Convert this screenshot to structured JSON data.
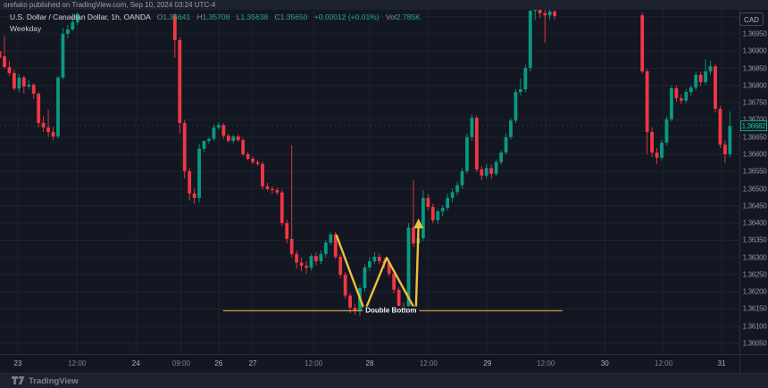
{
  "topbar": {
    "text": "orefako published on TradingView.com, Sep 10, 2024 03:24 UTC-4"
  },
  "legend": {
    "symbol": "U.S. Dollar / Canadian Dollar, 1h, OANDA",
    "o_label": "O",
    "o_value": "1.35641",
    "h_label": "H",
    "h_value": "1.35708",
    "l_label": "L",
    "l_value": "1.35638",
    "c_label": "C",
    "c_value": "1.35650",
    "change": "+0.00012 (+0.01%)",
    "vol_label": "Vol",
    "vol_value": "2.785K",
    "indicator": "Weekday"
  },
  "price_axis": {
    "currency": "CAD",
    "last_label": "1.36682"
  },
  "watermark": {
    "brand": "TradingView"
  },
  "colors": {
    "up": "#089981",
    "down": "#f23645",
    "annotation": "#edc23a",
    "background": "#131722",
    "panel": "#1d222e",
    "last_price": "#17a087"
  },
  "chart_data": {
    "type": "candlestick",
    "title": "U.S. Dollar / Canadian Dollar, 1h, OANDA",
    "pattern_annotation": "Double Bottom",
    "ylim": [
      1.3602,
      1.3706
    ],
    "grid": true,
    "last_price": 1.36682,
    "y_axis_prices": [
      1.3695,
      1.369,
      1.3685,
      1.368,
      1.3675,
      1.367,
      1.3665,
      1.366,
      1.3655,
      1.365,
      1.3645,
      1.364,
      1.3635,
      1.363,
      1.3625,
      1.362,
      1.3615,
      1.361,
      1.3605
    ],
    "y_gridline_prices": [
      1.37,
      1.3695,
      1.369,
      1.3685,
      1.368,
      1.3675,
      1.367,
      1.3665,
      1.366,
      1.3655,
      1.365,
      1.3645,
      1.364,
      1.3635,
      1.363,
      1.3625,
      1.362,
      1.3615,
      1.361,
      1.3605
    ],
    "x_axis": [
      {
        "label": "23",
        "slot": 2.75,
        "major": true
      },
      {
        "label": "12:00",
        "slot": 14.9,
        "major": false
      },
      {
        "label": "24",
        "slot": 27.0,
        "major": true
      },
      {
        "label": "09:00",
        "slot": 36.3,
        "major": false
      },
      {
        "label": "26",
        "slot": 44.0,
        "major": true
      },
      {
        "label": "27",
        "slot": 51.0,
        "major": true
      },
      {
        "label": "12:00",
        "slot": 63.5,
        "major": false
      },
      {
        "label": "28",
        "slot": 75.0,
        "major": true
      },
      {
        "label": "12:00",
        "slot": 87.1,
        "major": false
      },
      {
        "label": "29",
        "slot": 99.2,
        "major": true
      },
      {
        "label": "12:00",
        "slot": 111.2,
        "major": false
      },
      {
        "label": "30",
        "slot": 123.3,
        "major": true
      },
      {
        "label": "12:00",
        "slot": 135.4,
        "major": false
      },
      {
        "label": "31",
        "slot": 147.3,
        "major": true
      }
    ],
    "candles": [
      [
        -1,
        1.369,
        1.36935,
        1.36855,
        1.3688
      ],
      [
        0,
        1.36885,
        1.36945,
        1.36849,
        1.36854
      ],
      [
        1,
        1.36854,
        1.36872,
        1.36828,
        1.36836
      ],
      [
        2,
        1.36836,
        1.36846,
        1.36786,
        1.36791
      ],
      [
        3,
        1.36791,
        1.36833,
        1.36781,
        1.36823
      ],
      [
        4,
        1.36823,
        1.36828,
        1.36776,
        1.36797
      ],
      [
        5,
        1.36797,
        1.36815,
        1.36789,
        1.36802
      ],
      [
        6,
        1.36802,
        1.36807,
        1.36761,
        1.36776
      ],
      [
        7,
        1.36776,
        1.36781,
        1.36678,
        1.36691
      ],
      [
        8,
        1.36691,
        1.36711,
        1.36665,
        1.36678
      ],
      [
        9,
        1.36678,
        1.3673,
        1.3665,
        1.36665
      ],
      [
        10,
        1.36665,
        1.3668,
        1.3664,
        1.36652
      ],
      [
        11,
        1.36652,
        1.36828,
        1.36645,
        1.36823
      ],
      [
        12,
        1.36823,
        1.36968,
        1.36818,
        1.3695
      ],
      [
        13,
        1.3695,
        1.36976,
        1.36937,
        1.36963
      ],
      [
        14,
        1.36963,
        1.3701,
        1.36958,
        1.36984
      ],
      [
        15,
        1.36984,
        1.37012,
        1.36976,
        1.37008
      ],
      [
        35,
        1.37004,
        1.3701,
        1.3688,
        1.36932
      ],
      [
        36,
        1.36932,
        1.3694,
        1.3666,
        1.36691
      ],
      [
        37,
        1.36691,
        1.367,
        1.3653,
        1.36551
      ],
      [
        38,
        1.36551,
        1.36561,
        1.36465,
        1.36486
      ],
      [
        39,
        1.36486,
        1.365,
        1.36456,
        1.36473
      ],
      [
        40,
        1.36473,
        1.3663,
        1.3646,
        1.36616
      ],
      [
        41,
        1.36616,
        1.3664,
        1.36608,
        1.36639
      ],
      [
        42,
        1.36639,
        1.3665,
        1.3663,
        1.36645
      ],
      [
        43,
        1.36645,
        1.36687,
        1.3664,
        1.36678
      ],
      [
        44,
        1.36678,
        1.36693,
        1.3667,
        1.36685
      ],
      [
        45,
        1.36685,
        1.3669,
        1.36645,
        1.36654
      ],
      [
        46,
        1.36654,
        1.3666,
        1.36634,
        1.36639
      ],
      [
        47,
        1.36639,
        1.36656,
        1.36632,
        1.36652
      ],
      [
        48,
        1.36652,
        1.36658,
        1.36636,
        1.36641
      ],
      [
        49,
        1.36641,
        1.36648,
        1.36595,
        1.366
      ],
      [
        50,
        1.366,
        1.36608,
        1.36582,
        1.36587
      ],
      [
        51,
        1.36587,
        1.36594,
        1.36572,
        1.36577
      ],
      [
        52,
        1.36577,
        1.36584,
        1.36566,
        1.36572
      ],
      [
        53,
        1.36572,
        1.36578,
        1.36498,
        1.36507
      ],
      [
        54,
        1.36507,
        1.36517,
        1.36494,
        1.36499
      ],
      [
        55,
        1.36499,
        1.36507,
        1.36486,
        1.36496
      ],
      [
        56,
        1.36496,
        1.36503,
        1.36482,
        1.36489
      ],
      [
        57,
        1.36489,
        1.36496,
        1.36392,
        1.364
      ],
      [
        58,
        1.364,
        1.3641,
        1.36341,
        1.36354
      ],
      [
        59,
        1.36354,
        1.36626,
        1.363,
        1.3631
      ],
      [
        60,
        1.3631,
        1.3632,
        1.36268,
        1.36285
      ],
      [
        61,
        1.36285,
        1.363,
        1.3626,
        1.36276
      ],
      [
        62,
        1.36276,
        1.3629,
        1.36252,
        1.3627
      ],
      [
        63,
        1.3627,
        1.3631,
        1.36262,
        1.36304
      ],
      [
        64,
        1.36304,
        1.36315,
        1.36278,
        1.36289
      ],
      [
        65,
        1.36289,
        1.3632,
        1.3628,
        1.3631
      ],
      [
        66,
        1.3631,
        1.3635,
        1.363,
        1.36343
      ],
      [
        67,
        1.36343,
        1.36372,
        1.36335,
        1.36367
      ],
      [
        68,
        1.36367,
        1.36375,
        1.36295,
        1.36302
      ],
      [
        69,
        1.36302,
        1.3631,
        1.3624,
        1.3625
      ],
      [
        70,
        1.3625,
        1.36258,
        1.3618,
        1.36189
      ],
      [
        71,
        1.36189,
        1.36196,
        1.36138,
        1.36154
      ],
      [
        72,
        1.36154,
        1.36165,
        1.36133,
        1.36146
      ],
      [
        73,
        1.36146,
        1.3622,
        1.3613,
        1.36211
      ],
      [
        74,
        1.36211,
        1.3628,
        1.362,
        1.36271
      ],
      [
        75,
        1.36271,
        1.363,
        1.3626,
        1.36289
      ],
      [
        76,
        1.36289,
        1.36315,
        1.3628,
        1.36302
      ],
      [
        77,
        1.36302,
        1.36312,
        1.3628,
        1.36289
      ],
      [
        78,
        1.36289,
        1.36298,
        1.36268,
        1.36284
      ],
      [
        79,
        1.36284,
        1.36292,
        1.36245,
        1.36253
      ],
      [
        80,
        1.36253,
        1.3626,
        1.36195,
        1.36206
      ],
      [
        81,
        1.36206,
        1.36214,
        1.3615,
        1.36159
      ],
      [
        82,
        1.36159,
        1.3617,
        1.36135,
        1.36149
      ],
      [
        83,
        1.36149,
        1.364,
        1.36133,
        1.36387
      ],
      [
        84,
        1.36387,
        1.36526,
        1.3633,
        1.36341
      ],
      [
        85,
        1.36341,
        1.36375,
        1.36328,
        1.36356
      ],
      [
        86,
        1.36356,
        1.36496,
        1.36348,
        1.36473
      ],
      [
        87,
        1.36473,
        1.36484,
        1.36438,
        1.36447
      ],
      [
        88,
        1.36447,
        1.36456,
        1.364,
        1.36408
      ],
      [
        89,
        1.36408,
        1.3644,
        1.36398,
        1.36434
      ],
      [
        90,
        1.36434,
        1.36452,
        1.3642,
        1.36444
      ],
      [
        91,
        1.36444,
        1.36486,
        1.36436,
        1.36473
      ],
      [
        92,
        1.36473,
        1.365,
        1.3646,
        1.3649
      ],
      [
        93,
        1.3649,
        1.3652,
        1.3648,
        1.3651
      ],
      [
        94,
        1.3651,
        1.3656,
        1.365,
        1.36551
      ],
      [
        95,
        1.36551,
        1.3666,
        1.36543,
        1.3665
      ],
      [
        96,
        1.3665,
        1.36715,
        1.3664,
        1.36706
      ],
      [
        97,
        1.36706,
        1.36712,
        1.36548,
        1.36556
      ],
      [
        98,
        1.36556,
        1.36566,
        1.36525,
        1.36538
      ],
      [
        99,
        1.36538,
        1.36572,
        1.3653,
        1.3656
      ],
      [
        100,
        1.3656,
        1.3657,
        1.36528,
        1.36543
      ],
      [
        101,
        1.36543,
        1.36585,
        1.36536,
        1.36577
      ],
      [
        102,
        1.36577,
        1.36612,
        1.3657,
        1.36605
      ],
      [
        103,
        1.36605,
        1.3666,
        1.36598,
        1.3665
      ],
      [
        104,
        1.3665,
        1.36705,
        1.36643,
        1.36698
      ],
      [
        105,
        1.36698,
        1.3679,
        1.3669,
        1.36781
      ],
      [
        106,
        1.36781,
        1.3682,
        1.3677,
        1.36789
      ],
      [
        107,
        1.36789,
        1.3686,
        1.3678,
        1.36851
      ],
      [
        108,
        1.36851,
        1.37025,
        1.36841,
        1.37017
      ],
      [
        109,
        1.37017,
        1.3703,
        1.3699,
        1.37023
      ],
      [
        110,
        1.37023,
        1.37028,
        1.36997,
        1.3701
      ],
      [
        111,
        1.3701,
        1.3702,
        1.36924,
        1.37004
      ],
      [
        112,
        1.37004,
        1.37025,
        1.3699,
        1.37015
      ],
      [
        113,
        1.37015,
        1.37022,
        1.36992,
        1.37002
      ],
      [
        131,
        1.37004,
        1.37012,
        1.36835,
        1.36841
      ],
      [
        132,
        1.36841,
        1.36848,
        1.366,
        1.36665
      ],
      [
        133,
        1.36665,
        1.36678,
        1.36592,
        1.36605
      ],
      [
        134,
        1.36605,
        1.36618,
        1.36572,
        1.3659
      ],
      [
        135,
        1.3659,
        1.36642,
        1.36582,
        1.36634
      ],
      [
        136,
        1.36634,
        1.3671,
        1.36626,
        1.36702
      ],
      [
        137,
        1.36702,
        1.368,
        1.36695,
        1.36792
      ],
      [
        138,
        1.36792,
        1.368,
        1.36752,
        1.36763
      ],
      [
        139,
        1.36763,
        1.36775,
        1.36746,
        1.36756
      ],
      [
        140,
        1.36756,
        1.3679,
        1.36748,
        1.36781
      ],
      [
        141,
        1.36781,
        1.36802,
        1.3677,
        1.36794
      ],
      [
        142,
        1.36794,
        1.3684,
        1.36786,
        1.36831
      ],
      [
        143,
        1.36831,
        1.3684,
        1.36798,
        1.3681
      ],
      [
        144,
        1.3681,
        1.36876,
        1.36802,
        1.36841
      ],
      [
        145,
        1.36841,
        1.36872,
        1.3683,
        1.36856
      ],
      [
        146,
        1.36856,
        1.36862,
        1.36722,
        1.36732
      ],
      [
        147,
        1.36732,
        1.3674,
        1.36618,
        1.36628
      ],
      [
        148,
        1.36628,
        1.3664,
        1.36574,
        1.366
      ],
      [
        149,
        1.366,
        1.36725,
        1.36592,
        1.36682
      ]
    ],
    "annotations": {
      "hline": {
        "price": 1.36145,
        "slot1": 44.9,
        "slot2": 114.6
      },
      "zigzag": [
        [
          68.2,
          1.36364
        ],
        [
          74.0,
          1.36144
        ],
        [
          78.5,
          1.36299
        ],
        [
          84.5,
          1.36144
        ],
        [
          85.05,
          1.36395
        ]
      ],
      "label": {
        "text": "Double Bottom",
        "slot": 79.4,
        "price": 1.36145
      }
    }
  }
}
